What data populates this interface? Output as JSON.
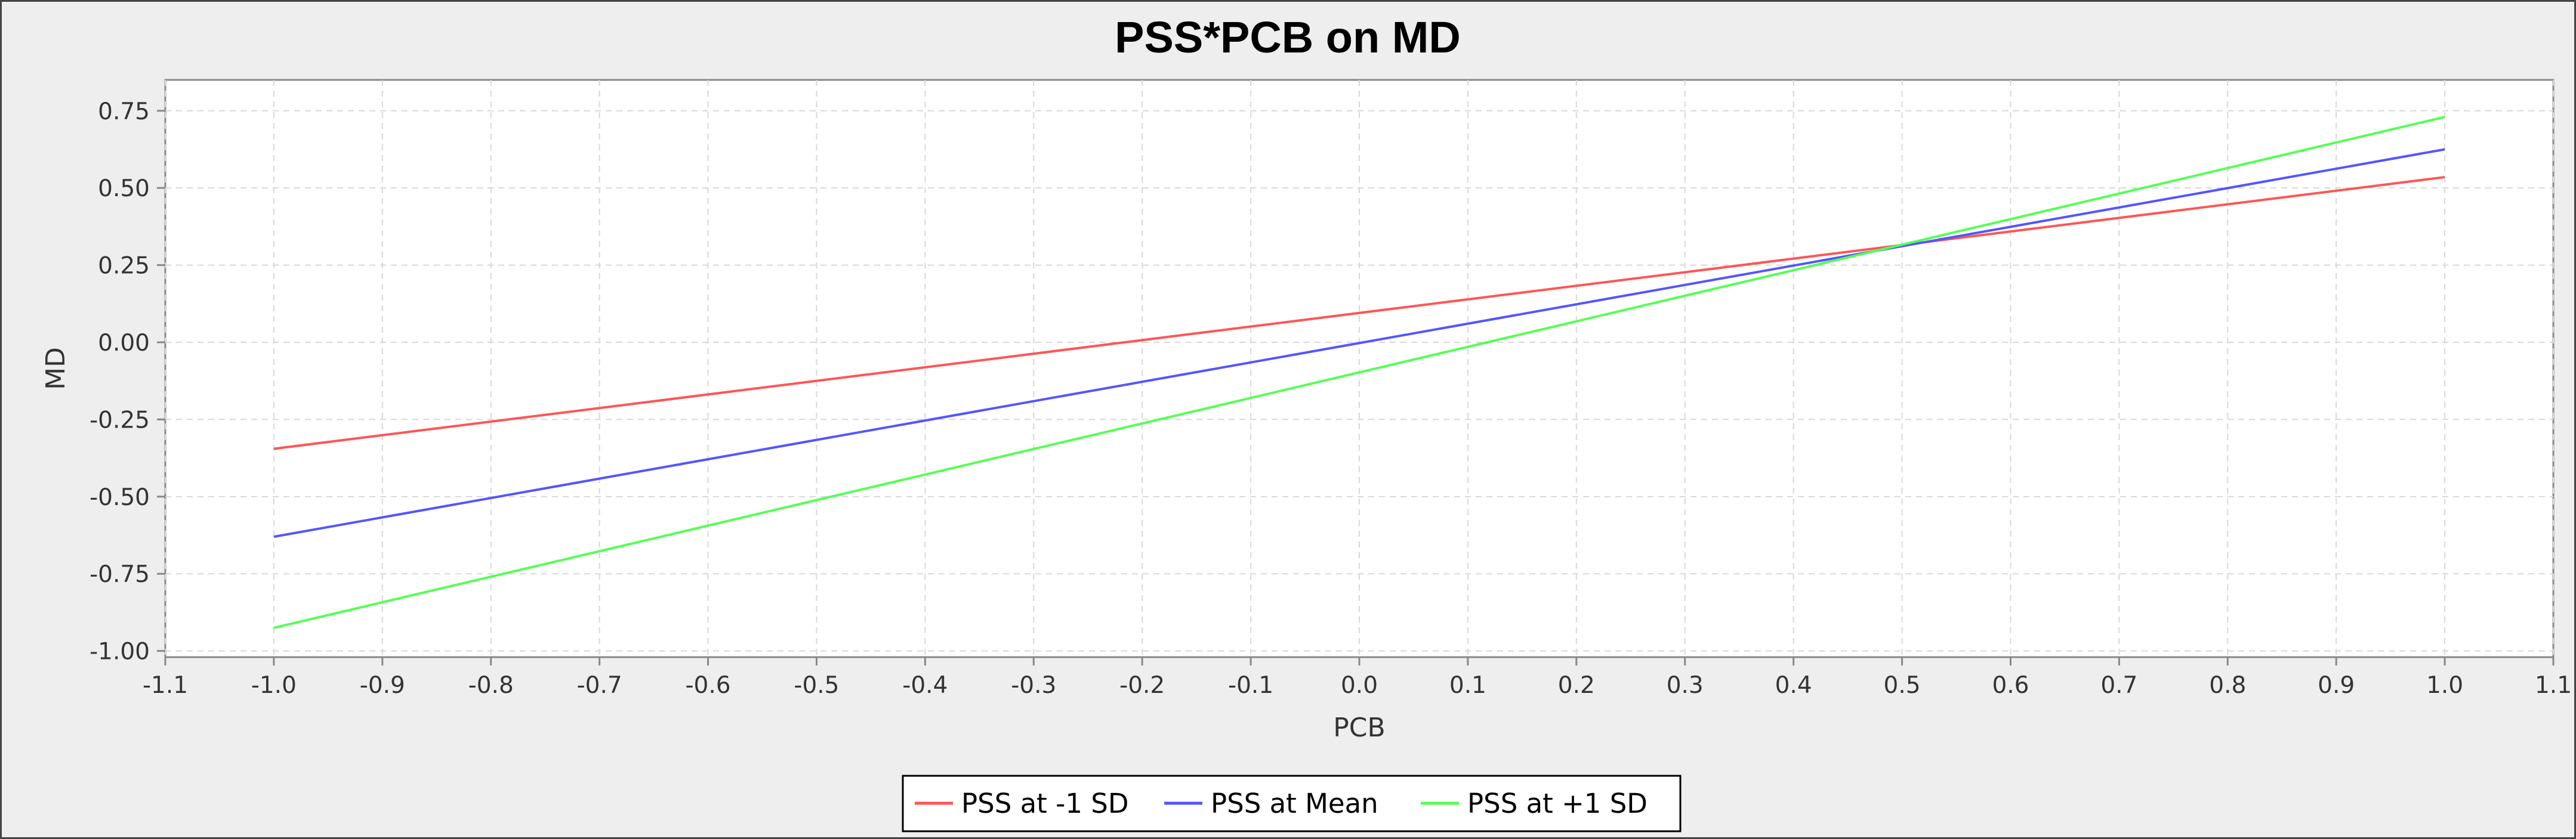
{
  "chart_data": {
    "type": "line",
    "title": "PSS*PCB on MD",
    "xlabel": "PCB",
    "ylabel": "MD",
    "xlim": [
      -1.1,
      1.1
    ],
    "ylim": [
      -1.02,
      0.85
    ],
    "xticks": [
      -1.1,
      -1.0,
      -0.9,
      -0.8,
      -0.7,
      -0.6,
      -0.5,
      -0.4,
      -0.3,
      -0.2,
      -0.1,
      0.0,
      0.1,
      0.2,
      0.3,
      0.4,
      0.5,
      0.6,
      0.7,
      0.8,
      0.9,
      1.0,
      1.1
    ],
    "xtick_labels": [
      "-1.1",
      "-1.0",
      "-0.9",
      "-0.8",
      "-0.7",
      "-0.6",
      "-0.5",
      "-0.4",
      "-0.3",
      "-0.2",
      "-0.1",
      "0.0",
      "0.1",
      "0.2",
      "0.3",
      "0.4",
      "0.5",
      "0.6",
      "0.7",
      "0.8",
      "0.9",
      "1.0",
      "1.1"
    ],
    "yticks": [
      -1.0,
      -0.75,
      -0.5,
      -0.25,
      0.0,
      0.25,
      0.5,
      0.75
    ],
    "ytick_labels": [
      "-1.00",
      "-0.75",
      "-0.50",
      "-0.25",
      "0.00",
      "0.25",
      "0.50",
      "0.75"
    ],
    "grid": true,
    "legend_position": "bottom-center",
    "series": [
      {
        "name": "PSS at -1 SD",
        "color": "#FF5555",
        "x": [
          -1.0,
          1.0
        ],
        "y": [
          -0.345,
          0.535
        ]
      },
      {
        "name": "PSS at Mean",
        "color": "#5555FF",
        "x": [
          -1.0,
          1.0
        ],
        "y": [
          -0.63,
          0.625
        ]
      },
      {
        "name": "PSS at +1 SD",
        "color": "#55FF55",
        "x": [
          -1.0,
          1.0
        ],
        "y": [
          -0.925,
          0.73
        ]
      }
    ]
  }
}
